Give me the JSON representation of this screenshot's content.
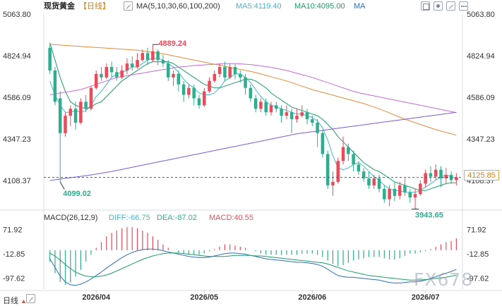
{
  "header": {
    "title": "现货黄金",
    "period": "【日线】",
    "ma_settings": "MA(5,10,30,60,100,200)",
    "ma5_label": "MA5:4119.40",
    "ma10_label": "MA10:4095.00",
    "ma_more": "MA"
  },
  "macd_header": {
    "title": "MACD(26,12,9)",
    "diff": "DIFF:-66.75",
    "dea": "DEA:-87.02",
    "macd": "MACD:40.55"
  },
  "footer": {
    "period_label": "日线"
  },
  "watermark": "FX678",
  "current_price": "4125.85",
  "colors": {
    "up": "#e94b5b",
    "down": "#2fae8f",
    "ma5": "#45b7c9",
    "ma10": "#1c9a6b",
    "ma30": "#2c6fb8",
    "ma60": "#c76ad8",
    "ma100": "#e58b39",
    "ma200": "#7b5bd9"
  },
  "chart_data": {
    "type": "candlestick",
    "price_axis_ticks": [
      "5063.80",
      "4824.94",
      "4586.09",
      "4347.23",
      "4108.37"
    ],
    "price_axis_ticks_right": [
      "5063.80",
      "4824.94",
      "4586.09",
      "4347.23",
      "4108.37"
    ],
    "ylim": [
      4020,
      5063.8
    ],
    "macd_axis_ticks": [
      "71.92",
      "-12.85",
      "-97.62"
    ],
    "macd_axis_ticks_right": [
      "71.92",
      "-12.85",
      "-97.62"
    ],
    "x_tick_labels": [
      "2026/04",
      "2026/05",
      "2026/06",
      "2026/07"
    ],
    "x_tick_index": [
      9,
      30,
      51,
      73
    ],
    "annotations": {
      "high": {
        "label": "4889.24",
        "index": 20,
        "price": 4889.24
      },
      "low1": {
        "label": "4099.02",
        "index": 2,
        "price": 4099.02
      },
      "low2": {
        "label": "3943.65",
        "index": 71,
        "price": 3943.65
      }
    },
    "candles": [
      [
        4870,
        4740,
        4890,
        4720
      ],
      [
        4740,
        4560,
        4760,
        4540
      ],
      [
        4580,
        4380,
        4620,
        4099
      ],
      [
        4380,
        4480,
        4500,
        4360
      ],
      [
        4480,
        4520,
        4540,
        4420
      ],
      [
        4520,
        4440,
        4560,
        4400
      ],
      [
        4440,
        4560,
        4580,
        4430
      ],
      [
        4560,
        4520,
        4600,
        4500
      ],
      [
        4520,
        4640,
        4650,
        4510
      ],
      [
        4640,
        4720,
        4740,
        4630
      ],
      [
        4720,
        4700,
        4760,
        4680
      ],
      [
        4700,
        4760,
        4780,
        4690
      ],
      [
        4760,
        4730,
        4790,
        4700
      ],
      [
        4730,
        4700,
        4760,
        4680
      ],
      [
        4700,
        4740,
        4770,
        4690
      ],
      [
        4740,
        4780,
        4810,
        4720
      ],
      [
        4780,
        4760,
        4820,
        4740
      ],
      [
        4760,
        4800,
        4840,
        4750
      ],
      [
        4800,
        4840,
        4860,
        4790
      ],
      [
        4840,
        4800,
        4870,
        4770
      ],
      [
        4800,
        4850,
        4889.24,
        4790
      ],
      [
        4850,
        4800,
        4860,
        4770
      ],
      [
        4800,
        4780,
        4830,
        4760
      ],
      [
        4780,
        4700,
        4800,
        4680
      ],
      [
        4700,
        4720,
        4740,
        4650
      ],
      [
        4720,
        4660,
        4740,
        4620
      ],
      [
        4660,
        4600,
        4680,
        4560
      ],
      [
        4600,
        4640,
        4660,
        4580
      ],
      [
        4640,
        4580,
        4660,
        4540
      ],
      [
        4580,
        4540,
        4600,
        4520
      ],
      [
        4540,
        4620,
        4640,
        4530
      ],
      [
        4620,
        4680,
        4700,
        4610
      ],
      [
        4680,
        4720,
        4740,
        4670
      ],
      [
        4720,
        4760,
        4780,
        4700
      ],
      [
        4760,
        4700,
        4790,
        4680
      ],
      [
        4700,
        4760,
        4780,
        4690
      ],
      [
        4760,
        4720,
        4780,
        4690
      ],
      [
        4720,
        4700,
        4740,
        4670
      ],
      [
        4700,
        4640,
        4720,
        4600
      ],
      [
        4640,
        4580,
        4660,
        4560
      ],
      [
        4580,
        4520,
        4600,
        4500
      ],
      [
        4520,
        4560,
        4580,
        4500
      ],
      [
        4560,
        4500,
        4580,
        4480
      ],
      [
        4500,
        4540,
        4560,
        4480
      ],
      [
        4540,
        4520,
        4560,
        4500
      ],
      [
        4520,
        4480,
        4540,
        4440
      ],
      [
        4480,
        4500,
        4540,
        4460
      ],
      [
        4500,
        4460,
        4520,
        4380
      ],
      [
        4460,
        4480,
        4520,
        4440
      ],
      [
        4480,
        4500,
        4540,
        4470
      ],
      [
        4500,
        4460,
        4520,
        4430
      ],
      [
        4460,
        4440,
        4480,
        4420
      ],
      [
        4440,
        4380,
        4460,
        4300
      ],
      [
        4380,
        4260,
        4400,
        4240
      ],
      [
        4260,
        4080,
        4280,
        4060
      ],
      [
        4080,
        4100,
        4160,
        4020
      ],
      [
        4100,
        4220,
        4240,
        4090
      ],
      [
        4220,
        4300,
        4360,
        4200
      ],
      [
        4300,
        4260,
        4320,
        4220
      ],
      [
        4260,
        4200,
        4280,
        4160
      ],
      [
        4200,
        4160,
        4220,
        4140
      ],
      [
        4160,
        4120,
        4180,
        4100
      ],
      [
        4120,
        4080,
        4160,
        4060
      ],
      [
        4080,
        4120,
        4140,
        4060
      ],
      [
        4120,
        4060,
        4140,
        4040
      ],
      [
        4060,
        4000,
        4080,
        3980
      ],
      [
        4000,
        4060,
        4080,
        3960
      ],
      [
        4060,
        4020,
        4100,
        3990
      ],
      [
        4020,
        4080,
        4100,
        4000
      ],
      [
        4080,
        4040,
        4120,
        4020
      ],
      [
        4040,
        4010,
        4060,
        3980
      ],
      [
        4010,
        4030,
        4060,
        3943.65
      ],
      [
        4030,
        4090,
        4110,
        4020
      ],
      [
        4090,
        4150,
        4170,
        4070
      ],
      [
        4150,
        4130,
        4190,
        4100
      ],
      [
        4130,
        4170,
        4200,
        4110
      ],
      [
        4170,
        4120,
        4190,
        4070
      ],
      [
        4120,
        4140,
        4180,
        4090
      ],
      [
        4140,
        4110,
        4160,
        4090
      ],
      [
        4110,
        4125.85,
        4150,
        4080
      ]
    ],
    "ma_series": {
      "ma5": {
        "start": 0,
        "values": [
          4680,
          4600,
          4540,
          4500,
          4500,
          4510,
          4500,
          4510,
          4540,
          4590,
          4620,
          4660,
          4700,
          4720,
          4730,
          4740,
          4760,
          4760,
          4780,
          4800,
          4810,
          4810,
          4800,
          4780,
          4760,
          4730,
          4690,
          4660,
          4640,
          4610,
          4600,
          4600,
          4610,
          4640,
          4680,
          4700,
          4720,
          4720,
          4700,
          4670,
          4630,
          4590,
          4560,
          4540,
          4530,
          4520,
          4510,
          4500,
          4490,
          4490,
          4480,
          4470,
          4450,
          4410,
          4340,
          4250,
          4180,
          4170,
          4180,
          4200,
          4210,
          4190,
          4160,
          4130,
          4110,
          4080,
          4060,
          4050,
          4050,
          4040,
          4040,
          4040,
          4050,
          4070,
          4090,
          4110,
          4130,
          4140,
          4130,
          4119.4
        ]
      },
      "ma10": {
        "start": 0,
        "values": [
          4900,
          4800,
          4700,
          4620,
          4560,
          4540,
          4530,
          4520,
          4530,
          4550,
          4560,
          4590,
          4620,
          4650,
          4680,
          4700,
          4720,
          4740,
          4760,
          4780,
          4790,
          4790,
          4790,
          4790,
          4780,
          4760,
          4740,
          4720,
          4700,
          4680,
          4660,
          4650,
          4640,
          4640,
          4650,
          4660,
          4670,
          4680,
          4690,
          4690,
          4680,
          4660,
          4640,
          4610,
          4590,
          4570,
          4550,
          4530,
          4520,
          4510,
          4500,
          4490,
          4480,
          4460,
          4430,
          4400,
          4360,
          4330,
          4300,
          4270,
          4240,
          4210,
          4190,
          4170,
          4160,
          4140,
          4120,
          4100,
          4090,
          4080,
          4070,
          4060,
          4050,
          4050,
          4060,
          4070,
          4080,
          4090,
          4095,
          4095.0
        ]
      },
      "ma60": {
        "start": 0,
        "values": [
          4600,
          4605,
          4610,
          4615,
          4620,
          4625,
          4630,
          4640,
          4650,
          4660,
          4670,
          4680,
          4690,
          4700,
          4705,
          4710,
          4715,
          4720,
          4725,
          4730,
          4735,
          4740,
          4745,
          4750,
          4755,
          4760,
          4762,
          4765,
          4768,
          4770,
          4772,
          4774,
          4776,
          4778,
          4780,
          4780,
          4780,
          4778,
          4776,
          4774,
          4770,
          4766,
          4762,
          4758,
          4752,
          4746,
          4740,
          4732,
          4724,
          4716,
          4708,
          4700,
          4690,
          4680,
          4670,
          4660,
          4650,
          4640,
          4630,
          4620,
          4612,
          4606,
          4600,
          4594,
          4588,
          4582,
          4576,
          4570,
          4564,
          4558,
          4552,
          4546,
          4540,
          4534,
          4528,
          4522,
          4516,
          4510,
          4504,
          4498
        ]
      },
      "ma100": {
        "start": 0,
        "values": [
          4890,
          4888,
          4886,
          4884,
          4882,
          4880,
          4878,
          4876,
          4874,
          4872,
          4870,
          4868,
          4866,
          4864,
          4862,
          4860,
          4858,
          4856,
          4852,
          4848,
          4844,
          4840,
          4836,
          4830,
          4824,
          4818,
          4812,
          4806,
          4800,
          4794,
          4788,
          4782,
          4776,
          4770,
          4764,
          4758,
          4752,
          4746,
          4740,
          4734,
          4728,
          4720,
          4712,
          4704,
          4696,
          4688,
          4680,
          4670,
          4660,
          4650,
          4640,
          4630,
          4622,
          4614,
          4606,
          4598,
          4590,
          4582,
          4574,
          4566,
          4558,
          4550,
          4540,
          4530,
          4520,
          4508,
          4496,
          4484,
          4472,
          4460,
          4450,
          4440,
          4430,
          4420,
          4410,
          4400,
          4392,
          4384,
          4376,
          4368
        ]
      },
      "ma200": {
        "start": 0,
        "values": [
          4108,
          4112,
          4116,
          4120,
          4124,
          4128,
          4132,
          4136,
          4140,
          4145,
          4150,
          4155,
          4160,
          4166,
          4172,
          4178,
          4184,
          4190,
          4196,
          4202,
          4208,
          4214,
          4220,
          4226,
          4232,
          4238,
          4244,
          4250,
          4256,
          4262,
          4268,
          4274,
          4280,
          4286,
          4292,
          4298,
          4304,
          4310,
          4316,
          4322,
          4328,
          4334,
          4340,
          4346,
          4352,
          4358,
          4364,
          4370,
          4376,
          4380,
          4384,
          4388,
          4392,
          4396,
          4400,
          4404,
          4408,
          4412,
          4416,
          4420,
          4424,
          4428,
          4432,
          4436,
          4440,
          4444,
          4448,
          4452,
          4456,
          4460,
          4464,
          4468,
          4472,
          4476,
          4480,
          4484,
          4488,
          4492,
          4496,
          4500
        ]
      }
    },
    "macd": {
      "diff": [
        -30,
        -60,
        -90,
        -110,
        -120,
        -122,
        -118,
        -110,
        -100,
        -88,
        -76,
        -62,
        -50,
        -38,
        -26,
        -16,
        -8,
        -2,
        2,
        4,
        4,
        2,
        -2,
        -6,
        -10,
        -14,
        -18,
        -22,
        -24,
        -26,
        -26,
        -24,
        -20,
        -16,
        -12,
        -10,
        -10,
        -12,
        -14,
        -18,
        -22,
        -26,
        -30,
        -32,
        -34,
        -36,
        -38,
        -40,
        -42,
        -42,
        -44,
        -46,
        -50,
        -56,
        -66,
        -78,
        -88,
        -92,
        -94,
        -94,
        -96,
        -98,
        -100,
        -102,
        -104,
        -108,
        -112,
        -114,
        -114,
        -112,
        -110,
        -110,
        -108,
        -104,
        -98,
        -92,
        -86,
        -80,
        -74,
        -66.75
      ],
      "dea": [
        -10,
        -20,
        -34,
        -50,
        -64,
        -76,
        -84,
        -90,
        -92,
        -92,
        -90,
        -86,
        -80,
        -72,
        -64,
        -56,
        -48,
        -40,
        -32,
        -26,
        -20,
        -16,
        -12,
        -10,
        -10,
        -10,
        -12,
        -14,
        -16,
        -18,
        -20,
        -22,
        -22,
        -22,
        -22,
        -20,
        -18,
        -18,
        -18,
        -18,
        -20,
        -20,
        -22,
        -24,
        -26,
        -28,
        -30,
        -32,
        -34,
        -36,
        -38,
        -40,
        -42,
        -44,
        -48,
        -54,
        -60,
        -66,
        -72,
        -76,
        -80,
        -84,
        -88,
        -90,
        -92,
        -94,
        -96,
        -98,
        -100,
        -102,
        -104,
        -104,
        -104,
        -102,
        -100,
        -98,
        -96,
        -94,
        -90,
        -87.02
      ],
      "hist": [
        -40,
        -80,
        -110,
        -120,
        -112,
        -92,
        -68,
        -40,
        -16,
        8,
        28,
        48,
        60,
        68,
        76,
        80,
        80,
        76,
        68,
        60,
        48,
        36,
        20,
        8,
        0,
        -8,
        -12,
        -16,
        -16,
        -16,
        -12,
        -4,
        4,
        12,
        20,
        20,
        16,
        12,
        8,
        0,
        -4,
        -12,
        -16,
        -16,
        -16,
        -16,
        -16,
        -16,
        -16,
        -12,
        -12,
        -12,
        -16,
        -24,
        -36,
        -48,
        -56,
        -52,
        -44,
        -36,
        -32,
        -28,
        -24,
        -24,
        -24,
        -28,
        -32,
        -32,
        -28,
        -20,
        -12,
        -12,
        -8,
        -4,
        4,
        12,
        20,
        28,
        32,
        40.55
      ]
    }
  }
}
